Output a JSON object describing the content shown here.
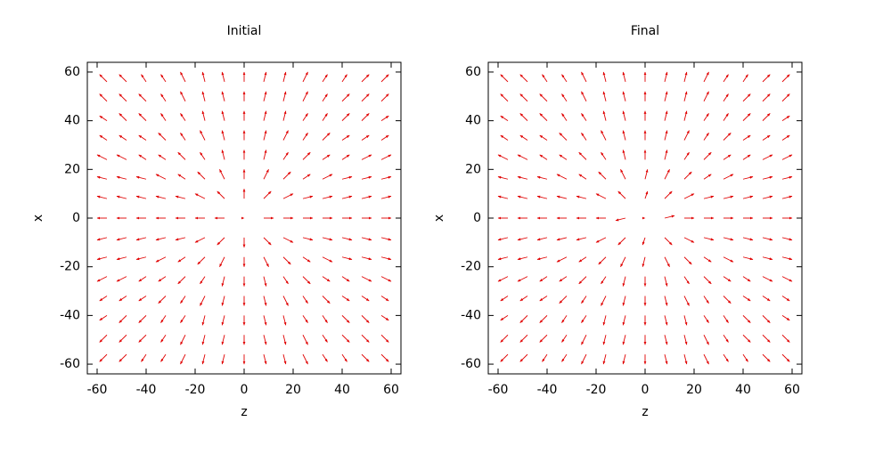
{
  "chart_data": [
    {
      "type": "quiver",
      "title": "Initial",
      "xlabel": "z",
      "ylabel": "x",
      "color": "#e00000",
      "xlim": [
        -64,
        64
      ],
      "ylim": [
        -64,
        64
      ],
      "xticks": [
        -60,
        -40,
        -20,
        0,
        20,
        40,
        60
      ],
      "yticks": [
        -60,
        -40,
        -20,
        0,
        20,
        40,
        60
      ],
      "x": [
        -56,
        -48,
        -40,
        -32,
        -24,
        -16,
        -8,
        0,
        8,
        16,
        24,
        32,
        40,
        48,
        56
      ],
      "y": [
        -56,
        -48,
        -40,
        -32,
        -24,
        -16,
        -8,
        0,
        8,
        16,
        24,
        32,
        40,
        48,
        56
      ],
      "u": [
        [
          -3,
          -3,
          -2,
          -2,
          -2,
          -1,
          -1,
          0,
          1,
          1,
          2,
          2,
          2,
          3,
          3
        ],
        [
          -3,
          -3,
          -3,
          -2,
          -2,
          -1,
          -1,
          0,
          1,
          1,
          2,
          2,
          3,
          3,
          3
        ],
        [
          -3,
          -3,
          -3,
          -2,
          -2,
          -1,
          -1,
          0,
          1,
          1,
          2,
          2,
          3,
          3,
          3
        ],
        [
          -3,
          -3,
          -3,
          -3,
          -2,
          -2,
          -1,
          0,
          1,
          2,
          2,
          3,
          3,
          3,
          3
        ],
        [
          -4,
          -4,
          -3,
          -3,
          -3,
          -2,
          -1,
          0,
          1,
          2,
          3,
          3,
          3,
          4,
          4
        ],
        [
          -4,
          -4,
          -4,
          -4,
          -3,
          -3,
          -2,
          0,
          2,
          3,
          3,
          4,
          4,
          4,
          4
        ],
        [
          -4,
          -4,
          -4,
          -4,
          -4,
          -4,
          -3,
          0,
          3,
          4,
          4,
          4,
          4,
          4,
          4
        ],
        [
          -4,
          -4,
          -4,
          -4,
          -4,
          -4,
          -4,
          0,
          4,
          4,
          4,
          4,
          4,
          4,
          4
        ],
        [
          -4,
          -4,
          -4,
          -4,
          -4,
          -4,
          -3,
          0,
          3,
          4,
          4,
          4,
          4,
          4,
          4
        ],
        [
          -4,
          -4,
          -4,
          -4,
          -3,
          -3,
          -2,
          0,
          2,
          3,
          3,
          4,
          4,
          4,
          4
        ],
        [
          -4,
          -4,
          -3,
          -3,
          -3,
          -2,
          -1,
          0,
          1,
          2,
          3,
          3,
          3,
          4,
          4
        ],
        [
          -3,
          -3,
          -3,
          -3,
          -2,
          -2,
          -1,
          0,
          1,
          2,
          2,
          3,
          3,
          3,
          3
        ],
        [
          -3,
          -3,
          -3,
          -2,
          -2,
          -1,
          -1,
          0,
          1,
          1,
          2,
          2,
          3,
          3,
          3
        ],
        [
          -3,
          -3,
          -3,
          -2,
          -2,
          -1,
          -1,
          0,
          1,
          1,
          2,
          2,
          3,
          3,
          3
        ],
        [
          -3,
          -3,
          -2,
          -2,
          -2,
          -1,
          -1,
          0,
          1,
          1,
          2,
          2,
          2,
          3,
          3
        ]
      ],
      "v": [
        [
          -3,
          -3,
          -3,
          -3,
          -4,
          -4,
          -4,
          -4,
          -4,
          -4,
          -4,
          -3,
          -3,
          -3,
          -3
        ],
        [
          -3,
          -3,
          -3,
          -3,
          -4,
          -4,
          -4,
          -4,
          -4,
          -4,
          -4,
          -3,
          -3,
          -3,
          -3
        ],
        [
          -2,
          -3,
          -3,
          -3,
          -3,
          -4,
          -4,
          -4,
          -4,
          -4,
          -3,
          -3,
          -3,
          -3,
          -2
        ],
        [
          -2,
          -2,
          -2,
          -3,
          -3,
          -4,
          -4,
          -4,
          -4,
          -4,
          -3,
          -3,
          -2,
          -2,
          -2
        ],
        [
          -2,
          -2,
          -2,
          -2,
          -3,
          -3,
          -4,
          -4,
          -4,
          -3,
          -3,
          -2,
          -2,
          -2,
          -2
        ],
        [
          -1,
          -1,
          -1,
          -2,
          -2,
          -3,
          -4,
          -4,
          -4,
          -3,
          -2,
          -2,
          -1,
          -1,
          -1
        ],
        [
          -1,
          -1,
          -1,
          -1,
          -1,
          -2,
          -3,
          -4,
          -3,
          -2,
          -1,
          -1,
          -1,
          -1,
          -1
        ],
        [
          0,
          0,
          0,
          0,
          0,
          0,
          0,
          0,
          0,
          0,
          0,
          0,
          0,
          0,
          0
        ],
        [
          1,
          1,
          1,
          1,
          1,
          2,
          3,
          4,
          3,
          2,
          1,
          1,
          1,
          1,
          1
        ],
        [
          1,
          1,
          1,
          2,
          2,
          3,
          4,
          4,
          4,
          3,
          2,
          2,
          1,
          1,
          1
        ],
        [
          2,
          2,
          2,
          2,
          3,
          3,
          4,
          4,
          4,
          3,
          3,
          2,
          2,
          2,
          2
        ],
        [
          2,
          2,
          2,
          3,
          3,
          4,
          4,
          4,
          4,
          4,
          3,
          3,
          2,
          2,
          2
        ],
        [
          2,
          3,
          3,
          3,
          3,
          4,
          4,
          4,
          4,
          4,
          3,
          3,
          3,
          3,
          2
        ],
        [
          3,
          3,
          3,
          3,
          4,
          4,
          4,
          4,
          4,
          4,
          4,
          3,
          3,
          3,
          3
        ],
        [
          3,
          3,
          3,
          3,
          4,
          4,
          4,
          4,
          4,
          4,
          4,
          3,
          3,
          3,
          3
        ]
      ]
    },
    {
      "type": "quiver",
      "title": "Final",
      "xlabel": "z",
      "ylabel": "x",
      "color": "#e00000",
      "xlim": [
        -64,
        64
      ],
      "ylim": [
        -64,
        64
      ],
      "xticks": [
        -60,
        -40,
        -20,
        0,
        20,
        40,
        60
      ],
      "yticks": [
        -60,
        -40,
        -20,
        0,
        20,
        40,
        60
      ],
      "x": [
        -56,
        -48,
        -40,
        -32,
        -24,
        -16,
        -8,
        0,
        8,
        16,
        24,
        32,
        40,
        48,
        56
      ],
      "y": [
        -56,
        -48,
        -40,
        -32,
        -24,
        -16,
        -8,
        0,
        8,
        16,
        24,
        32,
        40,
        48,
        56
      ],
      "u": [
        [
          -3,
          -3,
          -2,
          -2,
          -2,
          -1,
          -1,
          0,
          1,
          1,
          2,
          2,
          2,
          3,
          3
        ],
        [
          -3,
          -3,
          -3,
          -2,
          -2,
          -1,
          -1,
          0,
          1,
          1,
          2,
          2,
          3,
          3,
          3
        ],
        [
          -3,
          -3,
          -3,
          -2,
          -2,
          -1,
          -1,
          0,
          1,
          1,
          2,
          2,
          3,
          3,
          3
        ],
        [
          -3,
          -3,
          -3,
          -3,
          -2,
          -2,
          -1,
          0,
          1,
          2,
          2,
          3,
          3,
          3,
          3
        ],
        [
          -4,
          -4,
          -3,
          -3,
          -3,
          -2,
          -1,
          0,
          1,
          2,
          3,
          3,
          3,
          4,
          4
        ],
        [
          -4,
          -4,
          -4,
          -4,
          -3,
          -3,
          -2,
          -1,
          2,
          3,
          3,
          4,
          4,
          4,
          4
        ],
        [
          -4,
          -4,
          -4,
          -4,
          -4,
          -4,
          -3,
          -1,
          3,
          4,
          4,
          4,
          4,
          4,
          4
        ],
        [
          -4,
          -4,
          -4,
          -4,
          -4,
          -4,
          -4,
          0,
          4,
          4,
          4,
          4,
          4,
          4,
          4
        ],
        [
          -4,
          -4,
          -4,
          -4,
          -4,
          -4,
          -3,
          1,
          3,
          4,
          4,
          4,
          4,
          4,
          4
        ],
        [
          -4,
          -4,
          -4,
          -4,
          -3,
          -3,
          -2,
          1,
          2,
          3,
          3,
          4,
          4,
          4,
          4
        ],
        [
          -4,
          -4,
          -3,
          -3,
          -3,
          -2,
          -1,
          0,
          1,
          2,
          3,
          3,
          3,
          4,
          4
        ],
        [
          -3,
          -3,
          -3,
          -3,
          -2,
          -2,
          -1,
          0,
          1,
          2,
          2,
          3,
          3,
          3,
          3
        ],
        [
          -3,
          -3,
          -3,
          -2,
          -2,
          -1,
          -1,
          0,
          1,
          1,
          2,
          2,
          3,
          3,
          3
        ],
        [
          -3,
          -3,
          -3,
          -2,
          -2,
          -1,
          -1,
          0,
          1,
          1,
          2,
          2,
          3,
          3,
          3
        ],
        [
          -3,
          -3,
          -2,
          -2,
          -2,
          -1,
          -1,
          0,
          1,
          1,
          2,
          2,
          2,
          3,
          3
        ]
      ],
      "v": [
        [
          -3,
          -3,
          -3,
          -3,
          -4,
          -4,
          -4,
          -4,
          -4,
          -4,
          -4,
          -3,
          -3,
          -3,
          -3
        ],
        [
          -3,
          -3,
          -3,
          -3,
          -4,
          -4,
          -4,
          -4,
          -4,
          -4,
          -4,
          -3,
          -3,
          -3,
          -3
        ],
        [
          -2,
          -3,
          -3,
          -3,
          -3,
          -4,
          -4,
          -4,
          -4,
          -4,
          -3,
          -3,
          -3,
          -3,
          -2
        ],
        [
          -2,
          -2,
          -2,
          -3,
          -3,
          -4,
          -4,
          -4,
          -4,
          -4,
          -3,
          -3,
          -2,
          -2,
          -2
        ],
        [
          -2,
          -2,
          -2,
          -2,
          -3,
          -3,
          -4,
          -4,
          -4,
          -3,
          -3,
          -2,
          -2,
          -2,
          -2
        ],
        [
          -1,
          -1,
          -1,
          -2,
          -2,
          -3,
          -4,
          -4,
          -4,
          -3,
          -2,
          -2,
          -1,
          -1,
          -1
        ],
        [
          -1,
          -1,
          -1,
          -1,
          -1,
          -2,
          -3,
          -3,
          -3,
          -2,
          -1,
          -1,
          -1,
          -1,
          -1
        ],
        [
          0,
          0,
          0,
          0,
          0,
          0,
          -1,
          0,
          1,
          0,
          0,
          0,
          0,
          0,
          0
        ],
        [
          1,
          1,
          1,
          1,
          1,
          2,
          3,
          3,
          3,
          2,
          1,
          1,
          1,
          1,
          1
        ],
        [
          1,
          1,
          1,
          2,
          2,
          3,
          4,
          4,
          4,
          3,
          2,
          2,
          1,
          1,
          1
        ],
        [
          2,
          2,
          2,
          2,
          3,
          3,
          4,
          4,
          4,
          3,
          3,
          2,
          2,
          2,
          2
        ],
        [
          2,
          2,
          2,
          3,
          3,
          4,
          4,
          4,
          4,
          4,
          3,
          3,
          2,
          2,
          2
        ],
        [
          2,
          3,
          3,
          3,
          3,
          4,
          4,
          4,
          4,
          4,
          3,
          3,
          3,
          3,
          2
        ],
        [
          3,
          3,
          3,
          3,
          4,
          4,
          4,
          4,
          4,
          4,
          4,
          3,
          3,
          3,
          3
        ],
        [
          3,
          3,
          3,
          3,
          4,
          4,
          4,
          4,
          4,
          4,
          4,
          3,
          3,
          3,
          3
        ]
      ]
    }
  ]
}
